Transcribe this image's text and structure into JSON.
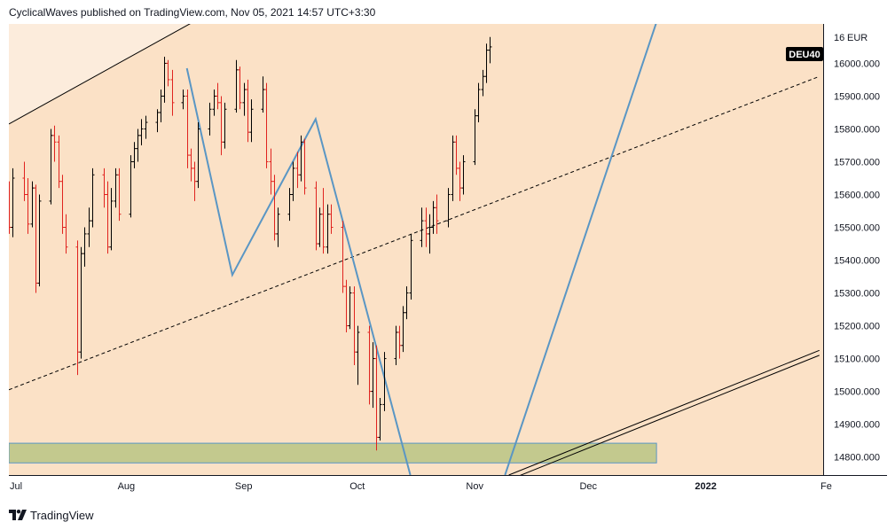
{
  "header": {
    "author": "CyclicalWaves",
    "published_on": "published on",
    "site": "TradingView.com,",
    "date": "Nov 05, 2021 14:57 UTC+3:30"
  },
  "footer": {
    "brand": "TradingView"
  },
  "colors": {
    "background": "#fbe1c6",
    "upper_band": "#fcecdc",
    "up_bar": "#000000",
    "down_bar": "#e0231f",
    "wave_line": "#5a96c4",
    "support_zone": "#c3c98e",
    "support_border": "#5a96c4",
    "badge": "#000000"
  },
  "chart_data": {
    "type": "ohlc",
    "symbol": "DEU40",
    "currency": "EUR",
    "y_ticks": [
      14800,
      14900,
      15000,
      15100,
      15200,
      15300,
      15400,
      15500,
      15600,
      15700,
      15800,
      15900,
      16000
    ],
    "y_tick_labels": [
      "14800.000",
      "14900.000",
      "15000.000",
      "15100.000",
      "15200.000",
      "15300.000",
      "15400.000",
      "15500.000",
      "15600.000",
      "15700.000",
      "15800.000",
      "15900.000",
      "16000.000"
    ],
    "y_top_label": "16",
    "ylim": [
      14745,
      16120
    ],
    "x_tick_labels": [
      "Jul",
      "Aug",
      "Sep",
      "Oct",
      "Nov",
      "Dec",
      "2022",
      "Fe"
    ],
    "x_tick_dates": [
      "2021-07-01",
      "2021-08-01",
      "2021-09-01",
      "2021-10-01",
      "2021-11-01",
      "2021-12-01",
      "2022-01-01",
      "2022-02-01"
    ],
    "xlim": [
      "2021-07-01",
      "2022-02-01"
    ],
    "last_price_badge": "DEU40",
    "ohlc_dates": [
      "2021-07-01",
      "2021-07-02",
      "2021-07-05",
      "2021-07-06",
      "2021-07-07",
      "2021-07-08",
      "2021-07-09",
      "2021-07-12",
      "2021-07-13",
      "2021-07-14",
      "2021-07-15",
      "2021-07-16",
      "2021-07-19",
      "2021-07-20",
      "2021-07-21",
      "2021-07-22",
      "2021-07-23",
      "2021-07-26",
      "2021-07-27",
      "2021-07-28",
      "2021-07-29",
      "2021-07-30",
      "2021-08-02",
      "2021-08-03",
      "2021-08-04",
      "2021-08-05",
      "2021-08-06",
      "2021-08-09",
      "2021-08-10",
      "2021-08-11",
      "2021-08-12",
      "2021-08-13",
      "2021-08-16",
      "2021-08-17",
      "2021-08-18",
      "2021-08-19",
      "2021-08-20",
      "2021-08-23",
      "2021-08-24",
      "2021-08-25",
      "2021-08-26",
      "2021-08-27",
      "2021-08-30",
      "2021-08-31",
      "2021-09-01",
      "2021-09-02",
      "2021-09-03",
      "2021-09-06",
      "2021-09-07",
      "2021-09-08",
      "2021-09-09",
      "2021-09-10",
      "2021-09-13",
      "2021-09-14",
      "2021-09-15",
      "2021-09-16",
      "2021-09-17",
      "2021-09-20",
      "2021-09-21",
      "2021-09-22",
      "2021-09-23",
      "2021-09-24",
      "2021-09-27",
      "2021-09-28",
      "2021-09-29",
      "2021-09-30",
      "2021-10-01",
      "2021-10-04",
      "2021-10-05",
      "2021-10-06",
      "2021-10-07",
      "2021-10-08",
      "2021-10-11",
      "2021-10-12",
      "2021-10-13",
      "2021-10-14",
      "2021-10-15",
      "2021-10-18",
      "2021-10-19",
      "2021-10-20",
      "2021-10-21",
      "2021-10-22",
      "2021-10-25",
      "2021-10-26",
      "2021-10-27",
      "2021-10-28",
      "2021-10-29",
      "2021-11-01",
      "2021-11-02",
      "2021-11-03",
      "2021-11-04",
      "2021-11-05"
    ],
    "ohlc": [
      [
        15600,
        15640,
        15480,
        15500
      ],
      [
        15500,
        15680,
        15470,
        15650
      ],
      [
        15650,
        15700,
        15580,
        15600
      ],
      [
        15600,
        15650,
        15480,
        15510
      ],
      [
        15510,
        15640,
        15500,
        15620
      ],
      [
        15620,
        15630,
        15300,
        15330
      ],
      [
        15330,
        15600,
        15320,
        15580
      ],
      [
        15580,
        15800,
        15570,
        15780
      ],
      [
        15780,
        15810,
        15700,
        15760
      ],
      [
        15760,
        15780,
        15620,
        15640
      ],
      [
        15640,
        15660,
        15480,
        15500
      ],
      [
        15500,
        15540,
        15420,
        15440
      ],
      [
        15440,
        15460,
        15050,
        15120
      ],
      [
        15120,
        15440,
        15100,
        15420
      ],
      [
        15420,
        15500,
        15380,
        15480
      ],
      [
        15480,
        15560,
        15440,
        15520
      ],
      [
        15520,
        15680,
        15500,
        15660
      ],
      [
        15660,
        15680,
        15560,
        15600
      ],
      [
        15600,
        15640,
        15420,
        15440
      ],
      [
        15440,
        15620,
        15430,
        15580
      ],
      [
        15580,
        15680,
        15560,
        15660
      ],
      [
        15660,
        15680,
        15520,
        15540
      ],
      [
        15540,
        15720,
        15530,
        15700
      ],
      [
        15700,
        15760,
        15680,
        15740
      ],
      [
        15740,
        15800,
        15700,
        15780
      ],
      [
        15780,
        15830,
        15750,
        15800
      ],
      [
        15800,
        15840,
        15770,
        15820
      ],
      [
        15820,
        15860,
        15790,
        15850
      ],
      [
        15850,
        15920,
        15820,
        15900
      ],
      [
        15900,
        16020,
        15880,
        16000
      ],
      [
        16000,
        16010,
        15930,
        15950
      ],
      [
        15950,
        15980,
        15840,
        15880
      ],
      [
        15880,
        15920,
        15860,
        15900
      ],
      [
        15900,
        15920,
        15680,
        15720
      ],
      [
        15720,
        15740,
        15640,
        15680
      ],
      [
        15680,
        15700,
        15580,
        15640
      ],
      [
        15640,
        15820,
        15620,
        15800
      ],
      [
        15800,
        15880,
        15780,
        15860
      ],
      [
        15860,
        15920,
        15840,
        15900
      ],
      [
        15900,
        15940,
        15860,
        15880
      ],
      [
        15880,
        15900,
        15720,
        15760
      ],
      [
        15760,
        15880,
        15740,
        15860
      ],
      [
        15860,
        16010,
        15850,
        15980
      ],
      [
        15980,
        15990,
        15860,
        15880
      ],
      [
        15880,
        15940,
        15840,
        15920
      ],
      [
        15920,
        15950,
        15760,
        15790
      ],
      [
        15790,
        15890,
        15760,
        15860
      ],
      [
        15860,
        15960,
        15850,
        15920
      ],
      [
        15920,
        15940,
        15680,
        15700
      ],
      [
        15700,
        15740,
        15600,
        15640
      ],
      [
        15640,
        15660,
        15460,
        15480
      ],
      [
        15480,
        15560,
        15440,
        15540
      ],
      [
        15540,
        15620,
        15520,
        15600
      ],
      [
        15600,
        15700,
        15580,
        15680
      ],
      [
        15680,
        15730,
        15620,
        15660
      ],
      [
        15660,
        15780,
        15640,
        15760
      ],
      [
        15760,
        15770,
        15600,
        15620
      ],
      [
        15620,
        15640,
        15430,
        15450
      ],
      [
        15450,
        15560,
        15440,
        15540
      ],
      [
        15540,
        15620,
        15420,
        15440
      ],
      [
        15440,
        15570,
        15420,
        15540
      ],
      [
        15540,
        15570,
        15480,
        15500
      ],
      [
        15500,
        15520,
        15300,
        15320
      ],
      [
        15320,
        15340,
        15180,
        15200
      ],
      [
        15200,
        15320,
        15190,
        15300
      ],
      [
        15300,
        15320,
        15080,
        15120
      ],
      [
        15120,
        15200,
        15020,
        15180
      ],
      [
        15180,
        15200,
        14960,
        15000
      ],
      [
        15000,
        15150,
        14950,
        15100
      ],
      [
        15100,
        15140,
        14820,
        14860
      ],
      [
        14860,
        14980,
        14850,
        14960
      ],
      [
        14960,
        15120,
        14940,
        15100
      ],
      [
        15100,
        15200,
        15080,
        15180
      ],
      [
        15180,
        15200,
        15100,
        15140
      ],
      [
        15140,
        15260,
        15120,
        15240
      ],
      [
        15240,
        15320,
        15220,
        15300
      ],
      [
        15300,
        15480,
        15280,
        15460
      ],
      [
        15460,
        15560,
        15440,
        15520
      ],
      [
        15520,
        15560,
        15440,
        15480
      ],
      [
        15480,
        15540,
        15420,
        15500
      ],
      [
        15500,
        15580,
        15480,
        15560
      ],
      [
        15560,
        15600,
        15480,
        15520
      ],
      [
        15520,
        15620,
        15500,
        15600
      ],
      [
        15600,
        15780,
        15580,
        15760
      ],
      [
        15760,
        15780,
        15660,
        15680
      ],
      [
        15680,
        15700,
        15580,
        15620
      ],
      [
        15620,
        15720,
        15600,
        15700
      ],
      [
        15700,
        15860,
        15690,
        15840
      ],
      [
        15840,
        15940,
        15820,
        15920
      ],
      [
        15920,
        15980,
        15900,
        15960
      ],
      [
        15960,
        16060,
        15940,
        16040
      ],
      [
        16040,
        16080,
        16000,
        16050
      ]
    ],
    "annotations": [
      {
        "type": "trendline",
        "name": "upper-channel-line",
        "from": [
          "2021-07-01",
          15815
        ],
        "to": [
          "2021-08-24",
          16160
        ]
      },
      {
        "type": "trendline",
        "name": "mid-channel-line",
        "style": "dashed",
        "from": [
          "2021-07-01",
          15005
        ],
        "to": [
          "2022-01-31",
          15960
        ]
      },
      {
        "type": "trendline",
        "name": "lower-channel-line-1",
        "from": [
          "2021-11-10",
          14745
        ],
        "to": [
          "2022-01-31",
          15125
        ]
      },
      {
        "type": "trendline",
        "name": "lower-channel-line-2",
        "from": [
          "2021-11-10",
          14730
        ],
        "to": [
          "2022-01-31",
          15110
        ]
      },
      {
        "type": "wave",
        "name": "wave-path",
        "points": [
          [
            "2021-08-17",
            15985
          ],
          [
            "2021-08-29",
            15355
          ],
          [
            "2021-09-20",
            15830
          ],
          [
            "2021-10-15",
            14745
          ]
        ]
      },
      {
        "type": "wave",
        "name": "projection-line",
        "points": [
          [
            "2021-11-09",
            14745
          ],
          [
            "2021-12-20",
            16160
          ]
        ]
      },
      {
        "type": "zone",
        "name": "support-zone",
        "from": "2021-07-01",
        "to": "2021-12-19",
        "y_range": [
          14782,
          14842
        ]
      }
    ]
  }
}
